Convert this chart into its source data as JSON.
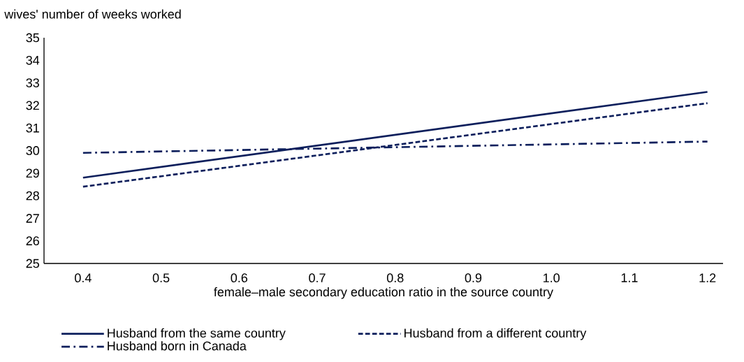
{
  "chart_data": {
    "type": "line",
    "ylabel": "wives' number of weeks worked",
    "xlabel": "female–male secondary education ratio in the source country",
    "x": [
      0.4,
      1.2
    ],
    "series": [
      {
        "name": "Husband from the same country",
        "color": "#0d1f5c",
        "values": [
          28.8,
          32.6
        ],
        "line_style": "solid"
      },
      {
        "name": "Husband from a different country",
        "color": "#0d1f5c",
        "values": [
          28.4,
          32.1
        ],
        "line_style": "dashed"
      },
      {
        "name": "Husband born in Canada",
        "color": "#0d1f5c",
        "values": [
          29.9,
          30.4
        ],
        "line_style": "dashdot"
      }
    ],
    "xlim": [
      0.35,
      1.22
    ],
    "ylim": [
      25,
      35
    ],
    "xticks": [
      0.4,
      0.5,
      0.6,
      0.7,
      0.8,
      0.9,
      {
        "value": 1.0,
        "label": "1.0"
      },
      1.1,
      1.2
    ],
    "yticks": [
      25,
      26,
      27,
      28,
      29,
      30,
      31,
      32,
      33,
      34,
      35
    ],
    "grid": false,
    "legend": "bottom",
    "marker": "none"
  }
}
